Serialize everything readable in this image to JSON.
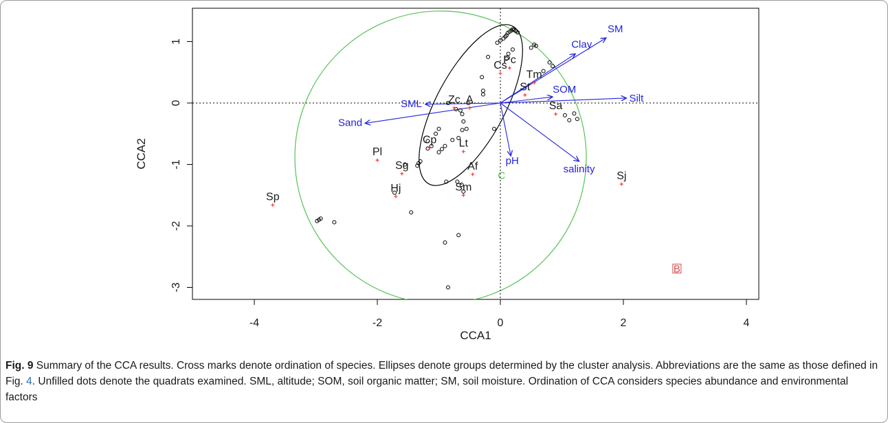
{
  "chart_data": {
    "type": "scatter",
    "xlabel": "CCA1",
    "ylabel": "CCA2",
    "xlim": [
      -5,
      4.3
    ],
    "ylim": [
      -3.2,
      1.4
    ],
    "x_ticks": [
      -4,
      -2,
      0,
      2,
      4
    ],
    "y_ticks": [
      1,
      0,
      -1,
      -2,
      -3
    ],
    "reference_lines": {
      "x": 0,
      "y": 0,
      "style": "dotted"
    },
    "colors": {
      "species": "#ff3333",
      "env": "#2222dd",
      "sites": "#000000",
      "ellipse_outer": "#55c255",
      "ellipse_inner": "#000000",
      "group_B": "#d05050"
    },
    "species": [
      {
        "label": "Sp",
        "x": -3.7,
        "y": -1.66
      },
      {
        "label": "Pl",
        "x": -2.0,
        "y": -0.93
      },
      {
        "label": "Sg",
        "x": -1.6,
        "y": -1.15
      },
      {
        "label": "Hj",
        "x": -1.7,
        "y": -1.52
      },
      {
        "label": "Cp",
        "x": -1.15,
        "y": -0.73
      },
      {
        "label": "Lt",
        "x": -0.6,
        "y": -0.79
      },
      {
        "label": "Af",
        "x": -0.45,
        "y": -1.16
      },
      {
        "label": "Sm",
        "x": -0.6,
        "y": -1.5
      },
      {
        "label": "Zc",
        "x": -0.75,
        "y": -0.08
      },
      {
        "label": "A",
        "x": -0.5,
        "y": -0.08
      },
      {
        "label": "Cs",
        "x": 0.0,
        "y": 0.48
      },
      {
        "label": "Pc",
        "x": 0.15,
        "y": 0.57
      },
      {
        "label": "Tm",
        "x": 0.55,
        "y": 0.33
      },
      {
        "label": "St",
        "x": 0.4,
        "y": 0.13
      },
      {
        "label": "Sa",
        "x": 0.9,
        "y": -0.18
      },
      {
        "label": "Sj",
        "x": 1.97,
        "y": -1.32
      }
    ],
    "env_vectors": [
      {
        "label": "SM",
        "x": 1.72,
        "y": 1.06
      },
      {
        "label": "Clay",
        "x": 1.22,
        "y": 0.8
      },
      {
        "label": "SOM",
        "x": 0.85,
        "y": 0.1
      },
      {
        "label": "Silt",
        "x": 2.05,
        "y": 0.08
      },
      {
        "label": "SML",
        "x": -1.22,
        "y": -0.02
      },
      {
        "label": "Sand",
        "x": -2.2,
        "y": -0.33
      },
      {
        "label": "pH",
        "x": 0.17,
        "y": -0.86
      },
      {
        "label": "salinity",
        "x": 1.28,
        "y": -0.95
      }
    ],
    "sites": [
      [
        0.05,
        1.05
      ],
      [
        0.08,
        1.08
      ],
      [
        0.1,
        1.1
      ],
      [
        0.12,
        1.14
      ],
      [
        0.15,
        1.16
      ],
      [
        0.18,
        1.18
      ],
      [
        0.2,
        1.2
      ],
      [
        0.22,
        1.19
      ],
      [
        0.25,
        1.17
      ],
      [
        0.28,
        1.15
      ],
      [
        0.0,
        1.02
      ],
      [
        -0.05,
        0.98
      ],
      [
        0.55,
        0.95
      ],
      [
        0.58,
        0.93
      ],
      [
        0.5,
        0.9
      ],
      [
        0.2,
        0.87
      ],
      [
        0.13,
        0.8
      ],
      [
        -0.2,
        0.75
      ],
      [
        0.1,
        0.72
      ],
      [
        0.8,
        0.66
      ],
      [
        0.85,
        0.6
      ],
      [
        0.7,
        0.52
      ],
      [
        -0.3,
        0.42
      ],
      [
        -0.28,
        0.2
      ],
      [
        -0.28,
        0.14
      ],
      [
        -0.85,
        0.0
      ],
      [
        -0.52,
        0.0
      ],
      [
        -0.72,
        -0.1
      ],
      [
        -0.65,
        -0.12
      ],
      [
        -0.62,
        -0.18
      ],
      [
        -0.6,
        -0.3
      ],
      [
        -0.55,
        -0.42
      ],
      [
        -0.62,
        -0.44
      ],
      [
        -1.0,
        -0.42
      ],
      [
        -1.05,
        -0.5
      ],
      [
        -1.18,
        -0.62
      ],
      [
        -0.1,
        -0.42
      ],
      [
        -1.18,
        -0.74
      ],
      [
        -1.12,
        -0.7
      ],
      [
        -0.9,
        -0.7
      ],
      [
        -0.68,
        -0.57
      ],
      [
        -0.78,
        -0.6
      ],
      [
        -0.95,
        -0.75
      ],
      [
        -1.0,
        -0.8
      ],
      [
        -1.3,
        -0.95
      ],
      [
        -1.35,
        -1.02
      ],
      [
        -1.33,
        -0.98
      ],
      [
        -1.55,
        -1.0
      ],
      [
        -1.72,
        -1.46
      ],
      [
        -0.88,
        -1.28
      ],
      [
        -0.7,
        -1.28
      ],
      [
        -0.63,
        -1.33
      ],
      [
        -0.6,
        -1.44
      ],
      [
        1.05,
        -0.2
      ],
      [
        1.12,
        -0.28
      ],
      [
        1.2,
        -0.17
      ],
      [
        1.25,
        -0.26
      ],
      [
        -1.45,
        -1.78
      ],
      [
        -2.95,
        -1.9
      ],
      [
        -2.92,
        -1.88
      ],
      [
        -2.98,
        -1.92
      ],
      [
        -2.7,
        -1.94
      ],
      [
        -0.9,
        -2.27
      ],
      [
        -0.68,
        -2.15
      ],
      [
        -0.85,
        -3.0
      ]
    ],
    "groups": [
      {
        "label": "C",
        "x": 0.02,
        "y": -1.18
      },
      {
        "label": "B",
        "x": 2.87,
        "y": -2.7
      }
    ]
  },
  "caption": {
    "fig_number": "Fig. 9",
    "text_part1": " Summary of the CCA results. Cross marks denote ordination of species. Ellipses denote groups determined by the cluster analysis. Abbreviations are the same as those defined in Fig. ",
    "fig_ref": "4",
    "text_part2": ". Unfilled dots denote the quadrats examined. SML, altitude; SOM, soil organic matter; SM, soil moisture. Ordination of CCA considers species abundance and environmental factors"
  }
}
